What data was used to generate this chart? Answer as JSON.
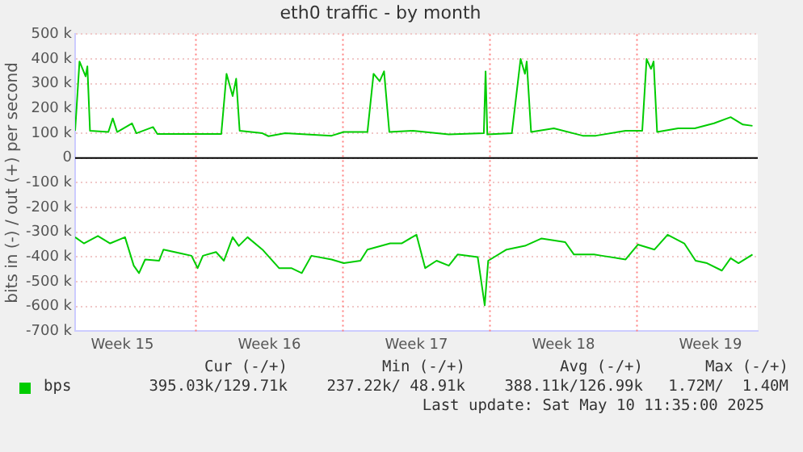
{
  "chart_data": {
    "type": "line",
    "title": "eth0 traffic - by month",
    "ylabel": "bits in (-) / out (+) per second",
    "xlim": [
      "2025-04-08T06:00",
      "2025-05-10T18:00"
    ],
    "xticks": [
      {
        "value": "2025-04-10T12:00",
        "label": "Week 15"
      },
      {
        "value": "2025-04-17T12:00",
        "label": "Week 16"
      },
      {
        "value": "2025-04-24T12:00",
        "label": "Week 17"
      },
      {
        "value": "2025-05-01T12:00",
        "label": "Week 18"
      },
      {
        "value": "2025-05-08T12:00",
        "label": "Week 19"
      }
    ],
    "ylim": [
      -700000,
      500000
    ],
    "yticks": [
      {
        "value": -700000,
        "label": "-700 k"
      },
      {
        "value": -600000,
        "label": "-600 k"
      },
      {
        "value": -500000,
        "label": "-500 k"
      },
      {
        "value": -400000,
        "label": "-400 k"
      },
      {
        "value": -300000,
        "label": "-300 k"
      },
      {
        "value": -200000,
        "label": "-200 k"
      },
      {
        "value": -100000,
        "label": "-100 k"
      },
      0,
      {
        "value": 100000,
        "label": "100 k"
      },
      {
        "value": 200000,
        "label": "200 k"
      },
      {
        "value": 300000,
        "label": "300 k"
      },
      {
        "value": 400000,
        "label": "400 k"
      },
      {
        "value": 500000,
        "label": "500 k"
      }
    ],
    "grid": "y",
    "legend": "bottom",
    "marker": "none",
    "line_style": "solid",
    "ref_lines": [
      {
        "axis": "y",
        "value": 0,
        "color": "#000000",
        "line_style": "solid"
      },
      {
        "axis": "x",
        "value": "2025-04-14",
        "color": "#ff8080",
        "line_style": "dotted"
      },
      {
        "axis": "x",
        "value": "2025-04-21",
        "color": "#ff8080",
        "line_style": "dotted"
      },
      {
        "axis": "x",
        "value": "2025-04-28",
        "color": "#ff8080",
        "line_style": "dotted"
      },
      {
        "axis": "x",
        "value": "2025-05-05",
        "color": "#ff8080",
        "line_style": "dotted"
      }
    ],
    "annotations": [
      "Cur (-/+)",
      "Min (-/+)",
      "Avg (-/+)",
      "Max (-/+)",
      "395.03k/129.71k",
      "237.22k/ 48.91k",
      "388.11k/126.99k",
      "1.72M/  1.40M",
      "Last update: Sat May 10 11:35:00 2025"
    ],
    "series": [
      {
        "name": "bps",
        "color": "#00cc00",
        "x": [
          "2025-04-08T06:00",
          "2025-04-08T11:00",
          "2025-04-08T18:00",
          "2025-04-08T20:00",
          "2025-04-08T23:00",
          "2025-04-09T20:00",
          "2025-04-10T01:00",
          "2025-04-10T06:00",
          "2025-04-10T23:00",
          "2025-04-11T04:00",
          "2025-04-11T23:00",
          "2025-04-12T04:00",
          "2025-04-13T06:00",
          "2025-04-15T05:00",
          "2025-04-15T11:00",
          "2025-04-15T18:00",
          "2025-04-15T22:00",
          "2025-04-16T02:00",
          "2025-04-17T04:00",
          "2025-04-17T11:00",
          "2025-04-18T06:00",
          "2025-04-20T11:00",
          "2025-04-21T01:00",
          "2025-04-22T04:00",
          "2025-04-22T11:00",
          "2025-04-22T18:00",
          "2025-04-22T23:00",
          "2025-04-23T05:00",
          "2025-04-24T08:00",
          "2025-04-26T01:00",
          "2025-04-27T17:00",
          "2025-04-27T19:00",
          "2025-04-27T21:00",
          "2025-04-29T01:00",
          "2025-04-29T11:00",
          "2025-04-29T16:00",
          "2025-04-29T18:00",
          "2025-04-29T23:00",
          "2025-05-01T01:00",
          "2025-05-02T10:00",
          "2025-05-03T01:00",
          "2025-05-04T11:00",
          "2025-05-05T06:00",
          "2025-05-05T11:00",
          "2025-05-05T16:00",
          "2025-05-05T19:00",
          "2025-05-05T23:00",
          "2025-05-06T23:00",
          "2025-05-07T18:00",
          "2025-05-08T16:00",
          "2025-05-09T11:00",
          "2025-05-10T01:00",
          "2025-05-10T12:00"
        ],
        "values": [
          110000,
          390000,
          330000,
          370000,
          110000,
          105000,
          160000,
          105000,
          140000,
          100000,
          125000,
          97000,
          97000,
          97000,
          340000,
          250000,
          320000,
          110000,
          100000,
          88000,
          100000,
          90000,
          105000,
          105000,
          340000,
          310000,
          350000,
          105000,
          110000,
          95000,
          100000,
          350000,
          95000,
          100000,
          400000,
          340000,
          390000,
          105000,
          120000,
          90000,
          90000,
          110000,
          110000,
          400000,
          360000,
          390000,
          105000,
          120000,
          120000,
          140000,
          165000,
          135000,
          130000
        ]
      },
      {
        "color": "#00cc00",
        "x": [
          "2025-04-08T06:00",
          "2025-04-08T16:00",
          "2025-04-09T08:00",
          "2025-04-09T22:00",
          "2025-04-10T15:00",
          "2025-04-11T01:00",
          "2025-04-11T07:00",
          "2025-04-11T14:00",
          "2025-04-12T06:00",
          "2025-04-12T11:00",
          "2025-04-13T06:00",
          "2025-04-13T19:00",
          "2025-04-14T02:00",
          "2025-04-14T08:00",
          "2025-04-14T23:00",
          "2025-04-15T08:00",
          "2025-04-15T18:00",
          "2025-04-16T01:00",
          "2025-04-16T11:00",
          "2025-04-17T04:00",
          "2025-04-17T23:00",
          "2025-04-18T13:00",
          "2025-04-19T01:00",
          "2025-04-19T12:00",
          "2025-04-20T11:00",
          "2025-04-21T01:00",
          "2025-04-21T20:00",
          "2025-04-22T04:00",
          "2025-04-23T06:00",
          "2025-04-23T19:00",
          "2025-04-24T12:00",
          "2025-04-24T22:00",
          "2025-04-25T11:00",
          "2025-04-26T01:00",
          "2025-04-26T11:00",
          "2025-04-27T10:00",
          "2025-04-27T18:00",
          "2025-04-27T22:00",
          "2025-04-28T19:00",
          "2025-04-29T16:00",
          "2025-04-30T11:00",
          "2025-05-01T14:00",
          "2025-05-02T00:00",
          "2025-05-02T23:00",
          "2025-05-03T08:00",
          "2025-05-04T11:00",
          "2025-05-05T01:00",
          "2025-05-05T20:00",
          "2025-05-06T11:00",
          "2025-05-07T06:00",
          "2025-05-07T19:00",
          "2025-05-08T08:00",
          "2025-05-09T01:00",
          "2025-05-09T11:00",
          "2025-05-09T20:00",
          "2025-05-10T12:00"
        ],
        "values": [
          -320000,
          -345000,
          -315000,
          -345000,
          -320000,
          -435000,
          -465000,
          -410000,
          -415000,
          -370000,
          -385000,
          -395000,
          -445000,
          -395000,
          -380000,
          -415000,
          -320000,
          -355000,
          -320000,
          -370000,
          -445000,
          -445000,
          -465000,
          -395000,
          -410000,
          -425000,
          -415000,
          -370000,
          -345000,
          -345000,
          -310000,
          -445000,
          -415000,
          -435000,
          -390000,
          -400000,
          -595000,
          -415000,
          -370000,
          -355000,
          -325000,
          -340000,
          -390000,
          -390000,
          -395000,
          -410000,
          -350000,
          -370000,
          -310000,
          -345000,
          -415000,
          -425000,
          -455000,
          -405000,
          -425000,
          -390000
        ]
      }
    ]
  }
}
